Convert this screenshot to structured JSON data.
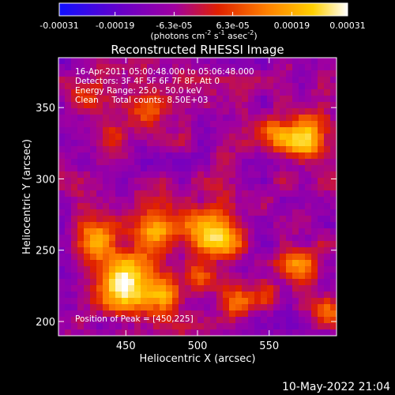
{
  "chart_data": {
    "type": "heatmap",
    "title": "Reconstructed RHESSI Image",
    "xlabel": "Heliocentric X (arcsec)",
    "ylabel": "Heliocentric Y (arcsec)",
    "xlim": [
      403,
      597
    ],
    "ylim": [
      190,
      385
    ],
    "x_ticks": [
      450,
      500,
      550
    ],
    "y_ticks": [
      200,
      250,
      300,
      350
    ],
    "colorbar": {
      "range": [
        -0.00031,
        0.00031
      ],
      "tick_values": [
        -0.00031,
        -0.00019,
        -6.3e-05,
        6.3e-05,
        0.00019,
        0.00031
      ],
      "tick_labels": [
        "-0.00031",
        "-0.00019",
        "-6.3e-05",
        "6.3e-05",
        "0.00019",
        "0.00031"
      ],
      "unit_main": "(photons cm",
      "unit_sup1": "-2",
      "unit_mid": " s",
      "unit_sup2": "-1",
      "unit_mid2": " asec",
      "unit_sup3": "-2",
      "unit_end": ")"
    },
    "colormap": [
      "#1010ff",
      "#6a00c8",
      "#a000a0",
      "#e02000",
      "#ff8000",
      "#ffd000",
      "#ffffff"
    ],
    "annotations": [
      "16-Apr-2011 05:00:48.000  to 05:06:48.000",
      "Detectors: 3F 4F 5F 6F 7F 8F, Att 0",
      "Energy Range: 25.0 - 50.0 keV",
      "Clean     Total counts: 8.50E+03"
    ],
    "peak_label": "Position of Peak = [450,225]",
    "peak": [
      450,
      225
    ],
    "blobs": [
      {
        "x": 450,
        "y": 225,
        "sigma": 14,
        "amp": 1.0
      },
      {
        "x": 478,
        "y": 220,
        "sigma": 9,
        "amp": 0.55
      },
      {
        "x": 430,
        "y": 257,
        "sigma": 10,
        "amp": 0.7
      },
      {
        "x": 470,
        "y": 262,
        "sigma": 10,
        "amp": 0.65
      },
      {
        "x": 505,
        "y": 264,
        "sigma": 12,
        "amp": 0.75
      },
      {
        "x": 520,
        "y": 255,
        "sigma": 9,
        "amp": 0.6
      },
      {
        "x": 575,
        "y": 327,
        "sigma": 10,
        "amp": 0.85
      },
      {
        "x": 553,
        "y": 332,
        "sigma": 8,
        "amp": 0.55
      },
      {
        "x": 465,
        "y": 345,
        "sigma": 9,
        "amp": 0.55
      },
      {
        "x": 440,
        "y": 328,
        "sigma": 7,
        "amp": 0.4
      },
      {
        "x": 572,
        "y": 240,
        "sigma": 9,
        "amp": 0.6
      },
      {
        "x": 525,
        "y": 213,
        "sigma": 8,
        "amp": 0.55
      },
      {
        "x": 548,
        "y": 220,
        "sigma": 7,
        "amp": 0.45
      },
      {
        "x": 590,
        "y": 205,
        "sigma": 7,
        "amp": 0.55
      },
      {
        "x": 500,
        "y": 233,
        "sigma": 8,
        "amp": 0.5
      },
      {
        "x": 420,
        "y": 360,
        "sigma": 8,
        "amp": 0.4
      }
    ]
  },
  "footer_date": "10-May-2022 21:04"
}
